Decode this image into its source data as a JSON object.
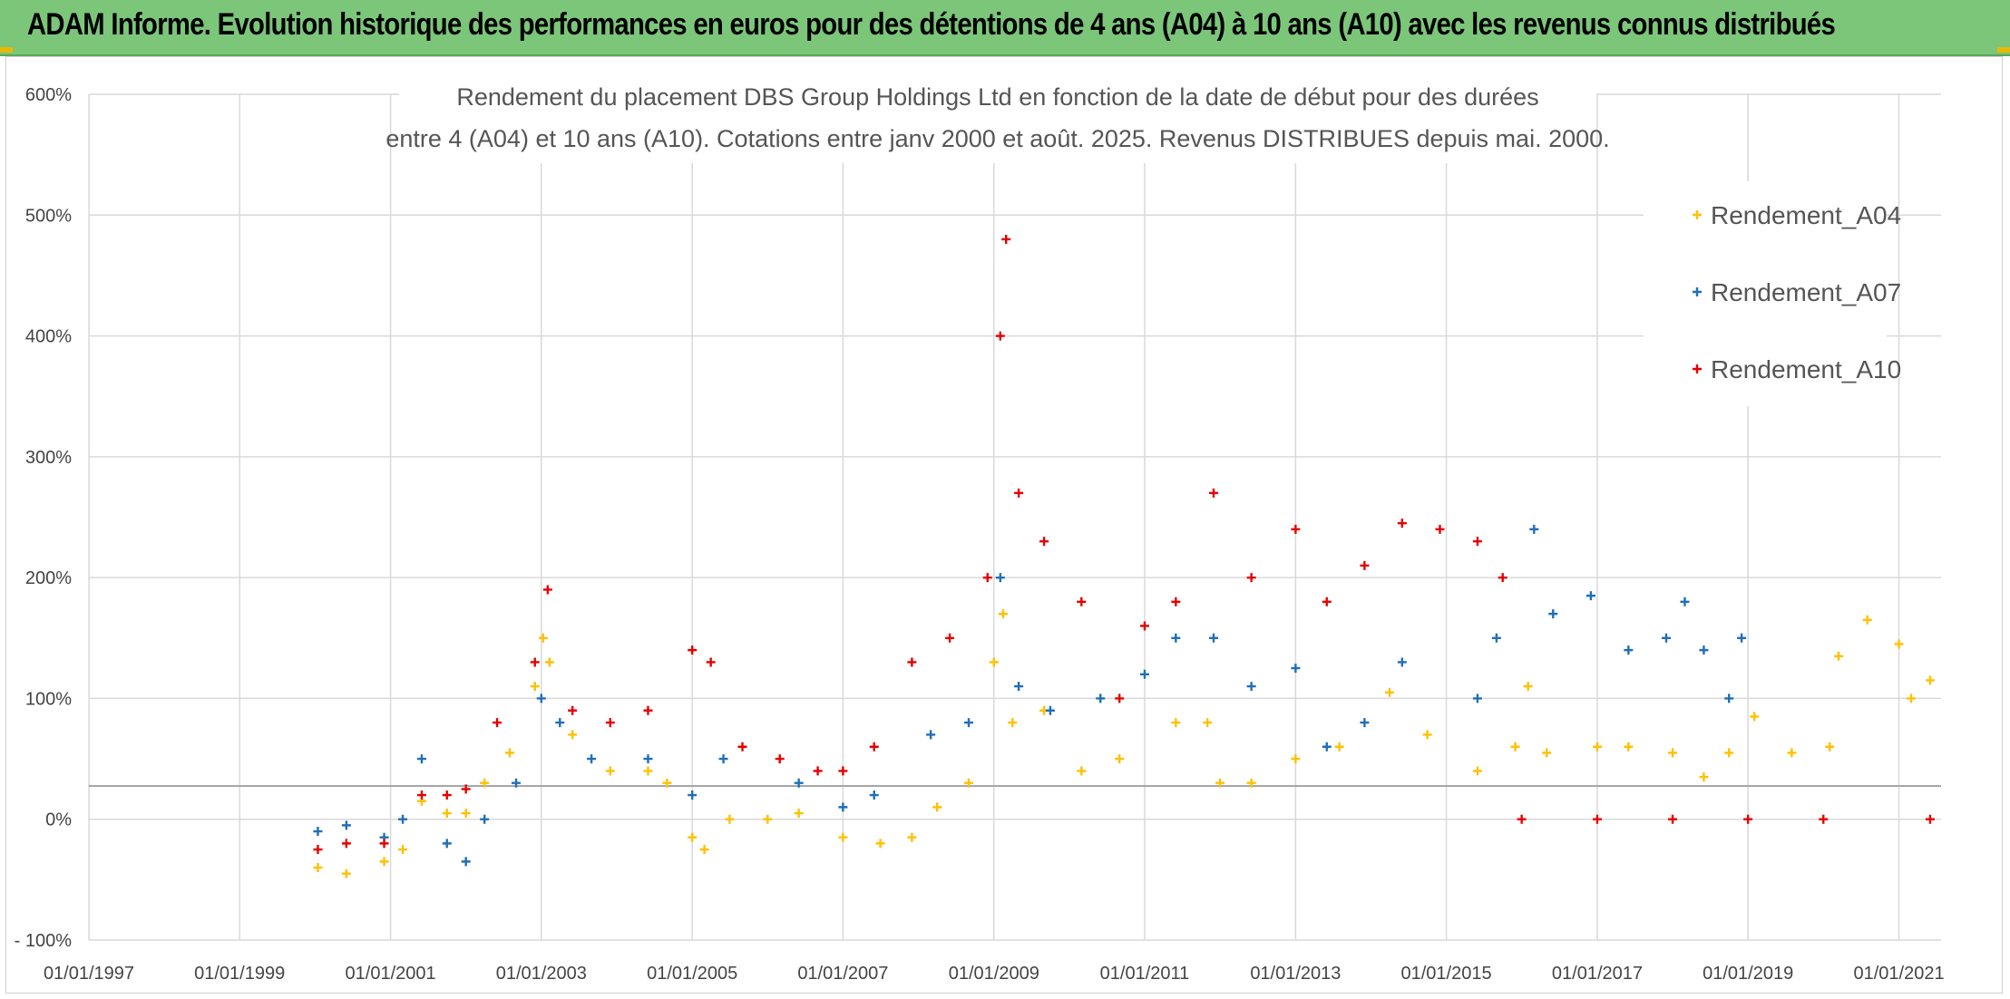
{
  "banner": {
    "title": "ADAM Informe. Evolution historique des performances en euros pour des détentions de 4 ans (A04) à 10 ans (A10) avec les revenus connus distribués"
  },
  "chart_data": {
    "type": "scatter",
    "title_line1": "Rendement du placement DBS Group Holdings Ltd en fonction de la date de début pour des durées",
    "title_line2": "entre 4 (A04) et 10 ans (A10). Cotations entre janv 2000 et août. 2025. Revenus DISTRIBUES depuis mai. 2000.",
    "x_unit": "date",
    "xlim": [
      "1997-01-01",
      "2021-07-24"
    ],
    "x_ticks": [
      "01/01/1997",
      "01/01/1999",
      "01/01/2001",
      "01/01/2003",
      "01/01/2005",
      "01/01/2007",
      "01/01/2009",
      "01/01/2011",
      "01/01/2013",
      "01/01/2015",
      "01/01/2017",
      "01/01/2019",
      "01/01/2021"
    ],
    "ylim": [
      -100,
      600
    ],
    "y_ticks": [
      {
        "value": 600,
        "label": "600%"
      },
      {
        "value": 500,
        "label": "500%"
      },
      {
        "value": 400,
        "label": "400%"
      },
      {
        "value": 300,
        "label": "300%"
      },
      {
        "value": 200,
        "label": "200%"
      },
      {
        "value": 100,
        "label": "100%"
      },
      {
        "value": 0,
        "label": "0%"
      },
      {
        "value": -100,
        "label": "- 100%"
      }
    ],
    "grid": true,
    "legend_position": "top-right",
    "marker": "+",
    "series": [
      {
        "name": "Rendement_A04",
        "color": "#ffc000",
        "points": [
          [
            "2000-01-15",
            -40
          ],
          [
            "2000-06-01",
            -45
          ],
          [
            "2000-12-01",
            -35
          ],
          [
            "2001-03-01",
            -25
          ],
          [
            "2001-06-01",
            15
          ],
          [
            "2001-10-01",
            5
          ],
          [
            "2002-01-01",
            5
          ],
          [
            "2002-04-01",
            30
          ],
          [
            "2002-08-01",
            55
          ],
          [
            "2002-12-01",
            110
          ],
          [
            "2003-01-10",
            150
          ],
          [
            "2003-02-10",
            130
          ],
          [
            "2003-06-01",
            70
          ],
          [
            "2003-12-01",
            40
          ],
          [
            "2004-06-01",
            40
          ],
          [
            "2004-09-01",
            30
          ],
          [
            "2005-01-01",
            -15
          ],
          [
            "2005-03-01",
            -25
          ],
          [
            "2005-07-01",
            0
          ],
          [
            "2006-01-01",
            0
          ],
          [
            "2006-06-01",
            5
          ],
          [
            "2007-01-01",
            -15
          ],
          [
            "2007-07-01",
            -20
          ],
          [
            "2007-12-01",
            -15
          ],
          [
            "2008-04-01",
            10
          ],
          [
            "2008-09-01",
            30
          ],
          [
            "2009-01-01",
            130
          ],
          [
            "2009-02-15",
            170
          ],
          [
            "2009-04-01",
            80
          ],
          [
            "2009-09-01",
            90
          ],
          [
            "2010-03-01",
            40
          ],
          [
            "2010-09-01",
            50
          ],
          [
            "2011-06-01",
            80
          ],
          [
            "2011-11-01",
            80
          ],
          [
            "2012-01-01",
            30
          ],
          [
            "2012-06-01",
            30
          ],
          [
            "2013-01-01",
            50
          ],
          [
            "2013-08-01",
            60
          ],
          [
            "2014-04-01",
            105
          ],
          [
            "2014-10-01",
            70
          ],
          [
            "2015-06-01",
            40
          ],
          [
            "2015-12-01",
            60
          ],
          [
            "2016-02-01",
            110
          ],
          [
            "2016-05-01",
            55
          ],
          [
            "2017-01-01",
            60
          ],
          [
            "2017-06-01",
            60
          ],
          [
            "2018-01-01",
            55
          ],
          [
            "2018-06-01",
            35
          ],
          [
            "2018-10-01",
            55
          ],
          [
            "2019-02-01",
            85
          ],
          [
            "2019-08-01",
            55
          ],
          [
            "2020-02-01",
            60
          ],
          [
            "2020-03-15",
            135
          ],
          [
            "2020-08-01",
            165
          ],
          [
            "2021-01-01",
            145
          ],
          [
            "2021-03-01",
            100
          ],
          [
            "2021-06-01",
            115
          ]
        ]
      },
      {
        "name": "Rendement_A07",
        "color": "#1f6fb8",
        "points": [
          [
            "2000-01-15",
            -10
          ],
          [
            "2000-06-01",
            -5
          ],
          [
            "2000-12-01",
            -15
          ],
          [
            "2001-03-01",
            0
          ],
          [
            "2001-06-01",
            50
          ],
          [
            "2001-10-01",
            -20
          ],
          [
            "2002-01-01",
            -35
          ],
          [
            "2002-04-01",
            0
          ],
          [
            "2002-09-01",
            30
          ],
          [
            "2003-01-01",
            100
          ],
          [
            "2003-04-01",
            80
          ],
          [
            "2003-09-01",
            50
          ],
          [
            "2004-06-01",
            50
          ],
          [
            "2005-01-01",
            20
          ],
          [
            "2005-06-01",
            50
          ],
          [
            "2006-06-01",
            30
          ],
          [
            "2007-01-01",
            10
          ],
          [
            "2007-06-01",
            20
          ],
          [
            "2008-03-01",
            70
          ],
          [
            "2008-09-01",
            80
          ],
          [
            "2009-02-01",
            200
          ],
          [
            "2009-05-01",
            110
          ],
          [
            "2009-10-01",
            90
          ],
          [
            "2010-06-01",
            100
          ],
          [
            "2011-01-01",
            120
          ],
          [
            "2011-06-01",
            150
          ],
          [
            "2011-12-01",
            150
          ],
          [
            "2012-06-01",
            110
          ],
          [
            "2013-01-01",
            125
          ],
          [
            "2013-06-01",
            60
          ],
          [
            "2013-12-01",
            80
          ],
          [
            "2014-06-01",
            130
          ],
          [
            "2015-06-01",
            100
          ],
          [
            "2015-09-01",
            150
          ],
          [
            "2016-03-01",
            240
          ],
          [
            "2016-06-01",
            170
          ],
          [
            "2016-12-01",
            185
          ],
          [
            "2017-06-01",
            140
          ],
          [
            "2017-12-01",
            150
          ],
          [
            "2018-03-01",
            180
          ],
          [
            "2018-06-01",
            140
          ],
          [
            "2018-10-01",
            100
          ],
          [
            "2018-12-01",
            150
          ]
        ]
      },
      {
        "name": "Rendement_A10",
        "color": "#e60000",
        "points": [
          [
            "2000-01-15",
            -25
          ],
          [
            "2000-06-01",
            -20
          ],
          [
            "2000-12-01",
            -20
          ],
          [
            "2001-06-01",
            20
          ],
          [
            "2001-10-01",
            20
          ],
          [
            "2002-01-01",
            25
          ],
          [
            "2002-06-01",
            80
          ],
          [
            "2002-12-01",
            130
          ],
          [
            "2003-02-01",
            190
          ],
          [
            "2003-06-01",
            90
          ],
          [
            "2003-12-01",
            80
          ],
          [
            "2004-06-01",
            90
          ],
          [
            "2005-01-01",
            140
          ],
          [
            "2005-04-01",
            130
          ],
          [
            "2005-09-01",
            60
          ],
          [
            "2006-03-01",
            50
          ],
          [
            "2006-09-01",
            40
          ],
          [
            "2007-01-01",
            40
          ],
          [
            "2007-06-01",
            60
          ],
          [
            "2007-12-01",
            130
          ],
          [
            "2008-06-01",
            150
          ],
          [
            "2008-12-01",
            200
          ],
          [
            "2009-02-01",
            400
          ],
          [
            "2009-03-01",
            480
          ],
          [
            "2009-05-01",
            270
          ],
          [
            "2009-09-01",
            230
          ],
          [
            "2010-03-01",
            180
          ],
          [
            "2010-09-01",
            100
          ],
          [
            "2011-01-01",
            160
          ],
          [
            "2011-06-01",
            180
          ],
          [
            "2011-12-01",
            270
          ],
          [
            "2012-06-01",
            200
          ],
          [
            "2013-01-01",
            240
          ],
          [
            "2013-06-01",
            180
          ],
          [
            "2013-12-01",
            210
          ],
          [
            "2014-06-01",
            245
          ],
          [
            "2014-12-01",
            240
          ],
          [
            "2015-06-01",
            230
          ],
          [
            "2015-10-01",
            200
          ],
          [
            "2016-01-01",
            0
          ],
          [
            "2017-01-01",
            0
          ],
          [
            "2018-01-01",
            0
          ],
          [
            "2019-01-01",
            0
          ],
          [
            "2020-01-01",
            0
          ],
          [
            "2021-06-01",
            0
          ]
        ]
      }
    ]
  }
}
